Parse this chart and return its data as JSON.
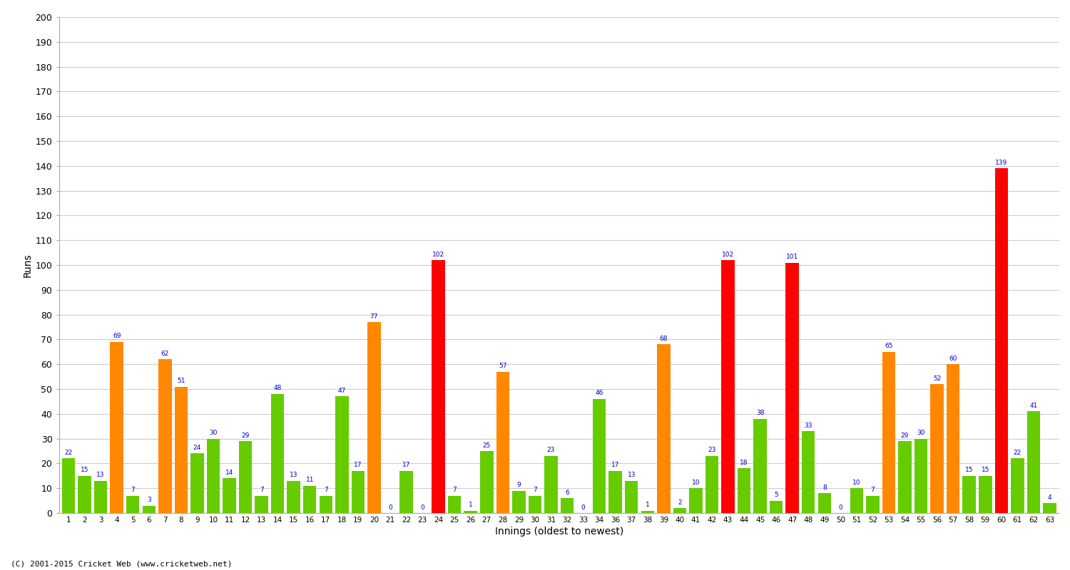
{
  "xlabel": "Innings (oldest to newest)",
  "ylabel": "Runs",
  "ylim": [
    0,
    200
  ],
  "yticks": [
    0,
    10,
    20,
    30,
    40,
    50,
    60,
    70,
    80,
    90,
    100,
    110,
    120,
    130,
    140,
    150,
    160,
    170,
    180,
    190,
    200
  ],
  "background_color": "#ffffff",
  "color_green": "#66cc00",
  "color_orange": "#ff8800",
  "color_red": "#ff0000",
  "label_color": "#0000cc",
  "footer": "(C) 2001-2015 Cricket Web (www.cricketweb.net)",
  "innings_data": [
    [
      1,
      22,
      "green"
    ],
    [
      2,
      15,
      "green"
    ],
    [
      3,
      13,
      "green"
    ],
    [
      4,
      69,
      "orange"
    ],
    [
      5,
      7,
      "green"
    ],
    [
      6,
      3,
      "green"
    ],
    [
      7,
      62,
      "orange"
    ],
    [
      8,
      51,
      "orange"
    ],
    [
      9,
      24,
      "green"
    ],
    [
      10,
      30,
      "green"
    ],
    [
      11,
      14,
      "green"
    ],
    [
      12,
      29,
      "green"
    ],
    [
      13,
      7,
      "green"
    ],
    [
      14,
      48,
      "green"
    ],
    [
      15,
      13,
      "green"
    ],
    [
      16,
      11,
      "green"
    ],
    [
      17,
      7,
      "green"
    ],
    [
      18,
      47,
      "green"
    ],
    [
      19,
      17,
      "green"
    ],
    [
      20,
      77,
      "orange"
    ],
    [
      21,
      0,
      "green"
    ],
    [
      22,
      17,
      "green"
    ],
    [
      23,
      0,
      "green"
    ],
    [
      24,
      102,
      "red"
    ],
    [
      25,
      7,
      "green"
    ],
    [
      26,
      1,
      "green"
    ],
    [
      27,
      25,
      "green"
    ],
    [
      28,
      57,
      "orange"
    ],
    [
      29,
      9,
      "green"
    ],
    [
      30,
      7,
      "green"
    ],
    [
      31,
      23,
      "green"
    ],
    [
      32,
      6,
      "green"
    ],
    [
      33,
      0,
      "green"
    ],
    [
      34,
      46,
      "green"
    ],
    [
      36,
      17,
      "green"
    ],
    [
      37,
      13,
      "green"
    ],
    [
      38,
      1,
      "green"
    ],
    [
      39,
      68,
      "orange"
    ],
    [
      40,
      2,
      "green"
    ],
    [
      41,
      10,
      "green"
    ],
    [
      42,
      23,
      "green"
    ],
    [
      43,
      102,
      "red"
    ],
    [
      44,
      18,
      "green"
    ],
    [
      45,
      38,
      "green"
    ],
    [
      46,
      5,
      "green"
    ],
    [
      47,
      101,
      "red"
    ],
    [
      48,
      33,
      "green"
    ],
    [
      49,
      8,
      "green"
    ],
    [
      50,
      0,
      "green"
    ],
    [
      51,
      10,
      "green"
    ],
    [
      52,
      7,
      "green"
    ],
    [
      53,
      65,
      "orange"
    ],
    [
      54,
      29,
      "green"
    ],
    [
      55,
      30,
      "green"
    ],
    [
      56,
      52,
      "orange"
    ],
    [
      57,
      60,
      "orange"
    ],
    [
      58,
      15,
      "green"
    ],
    [
      59,
      15,
      "green"
    ],
    [
      60,
      139,
      "red"
    ],
    [
      61,
      22,
      "green"
    ],
    [
      62,
      41,
      "green"
    ],
    [
      63,
      4,
      "green"
    ]
  ]
}
